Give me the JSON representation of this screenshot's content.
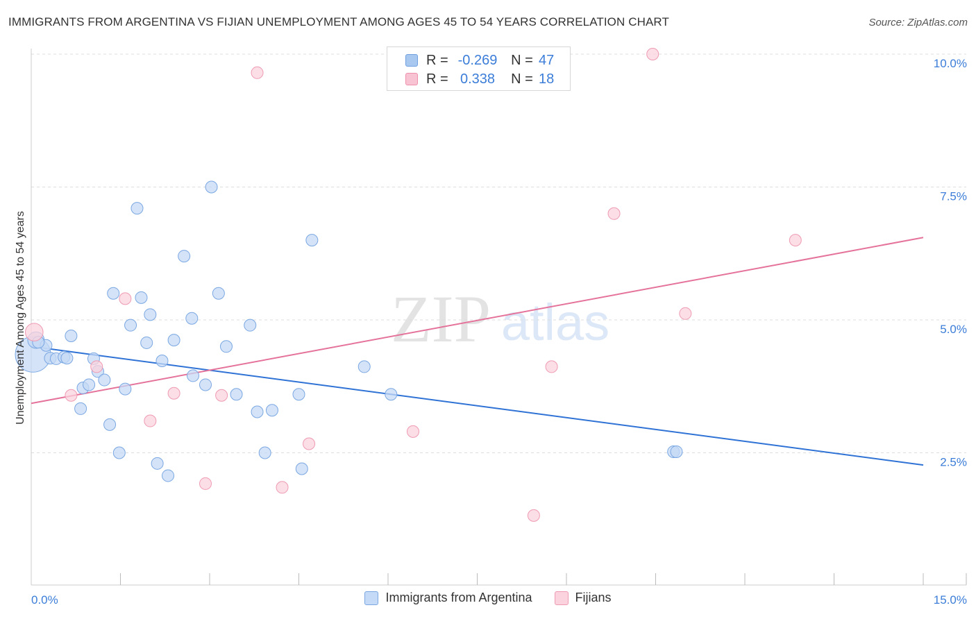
{
  "header": {
    "title": "IMMIGRANTS FROM ARGENTINA VS FIJIAN UNEMPLOYMENT AMONG AGES 45 TO 54 YEARS CORRELATION CHART",
    "source": "Source: ZipAtlas.com"
  },
  "watermark": {
    "zip": "ZIP",
    "atlas": "atlas"
  },
  "legend": {
    "rows": [
      {
        "r_label": "R =",
        "r_value": "-0.269",
        "n_label": "N =",
        "n_value": "47",
        "color": "#a9c8f0",
        "border": "#6f9fe0"
      },
      {
        "r_label": "R =",
        "r_value": "0.338",
        "n_label": "N =",
        "n_value": "18",
        "color": "#f8c4d3",
        "border": "#ee8fab"
      }
    ]
  },
  "bottom_legend": {
    "items": [
      {
        "label": "Immigrants from Argentina",
        "color": "#c5daf6",
        "border": "#7aa7e2"
      },
      {
        "label": "Fijians",
        "color": "#fbd3de",
        "border": "#ee9ab2"
      }
    ]
  },
  "chart_data": {
    "type": "scatter",
    "title": "IMMIGRANTS FROM ARGENTINA VS FIJIAN UNEMPLOYMENT AMONG AGES 45 TO 54 YEARS CORRELATION CHART",
    "xlabel": "",
    "ylabel": "Unemployment Among Ages 45 to 54 years",
    "xlim": [
      0,
      15
    ],
    "ylim": [
      0,
      10.4
    ],
    "x_tick_labels": [
      {
        "value": 0,
        "label": "0.0%"
      },
      {
        "value": 15,
        "label": "15.0%"
      }
    ],
    "x_minor_ticks": [
      1.5,
      3.0,
      4.5,
      6.0,
      7.5,
      9.0,
      10.5,
      12.0,
      13.5
    ],
    "y_ticks": [
      {
        "value": 2.5,
        "label": "2.5%"
      },
      {
        "value": 5.0,
        "label": "5.0%"
      },
      {
        "value": 7.5,
        "label": "7.5%"
      },
      {
        "value": 10.0,
        "label": "10.0%"
      }
    ],
    "grid": "horizontal dashed",
    "series": [
      {
        "name": "Immigrants from Argentina",
        "color": "#7aa7e2",
        "fill": "#c5daf6",
        "trend": {
          "x0": 0,
          "y0": 4.5,
          "x1": 15,
          "y1": 2.27,
          "color": "#2f72d6"
        },
        "points": [
          [
            0.03,
            4.35,
            3.0
          ],
          [
            0.08,
            4.62,
            1.4
          ],
          [
            0.25,
            4.52,
            1.0
          ],
          [
            0.32,
            4.28,
            1.0
          ],
          [
            0.42,
            4.27,
            1.0
          ],
          [
            0.55,
            4.3,
            1.0
          ],
          [
            0.67,
            4.7,
            1.0
          ],
          [
            0.83,
            3.33,
            1.0
          ],
          [
            0.87,
            3.72,
            1.0
          ],
          [
            0.97,
            3.78,
            1.0
          ],
          [
            1.05,
            4.27,
            1.0
          ],
          [
            1.12,
            4.03,
            1.0
          ],
          [
            1.23,
            3.87,
            1.0
          ],
          [
            1.32,
            3.03,
            1.0
          ],
          [
            1.38,
            5.5,
            1.0
          ],
          [
            1.48,
            2.5,
            1.0
          ],
          [
            1.58,
            3.7,
            1.0
          ],
          [
            1.67,
            4.9,
            1.0
          ],
          [
            1.78,
            7.1,
            1.0
          ],
          [
            1.85,
            5.42,
            1.0
          ],
          [
            1.94,
            4.57,
            1.0
          ],
          [
            2.0,
            5.1,
            1.0
          ],
          [
            2.12,
            2.3,
            1.0
          ],
          [
            2.2,
            4.23,
            1.0
          ],
          [
            2.3,
            2.07,
            1.0
          ],
          [
            2.4,
            4.62,
            1.0
          ],
          [
            2.57,
            6.2,
            1.0
          ],
          [
            2.7,
            5.03,
            1.0
          ],
          [
            2.72,
            3.95,
            1.0
          ],
          [
            2.93,
            3.78,
            1.0
          ],
          [
            3.03,
            7.5,
            1.0
          ],
          [
            3.15,
            5.5,
            1.0
          ],
          [
            3.28,
            4.5,
            1.0
          ],
          [
            3.45,
            3.6,
            1.0
          ],
          [
            3.68,
            4.9,
            1.0
          ],
          [
            3.8,
            3.27,
            1.0
          ],
          [
            3.93,
            2.5,
            1.0
          ],
          [
            4.05,
            3.3,
            1.0
          ],
          [
            4.5,
            3.6,
            1.0
          ],
          [
            4.55,
            2.2,
            1.0
          ],
          [
            4.72,
            6.5,
            1.0
          ],
          [
            5.6,
            4.12,
            1.0
          ],
          [
            6.05,
            3.6,
            1.0
          ],
          [
            10.8,
            2.52,
            1.0
          ],
          [
            10.85,
            2.52,
            1.0
          ],
          [
            0.12,
            4.58,
            1.0
          ],
          [
            0.6,
            4.28,
            1.0
          ]
        ]
      },
      {
        "name": "Fijians",
        "color": "#ee9ab2",
        "fill": "#fbd3de",
        "trend": {
          "x0": 0,
          "y0": 3.43,
          "x1": 15,
          "y1": 6.55,
          "color": "#e5729a"
        },
        "points": [
          [
            0.05,
            4.77,
            1.5
          ],
          [
            0.67,
            3.58,
            1.0
          ],
          [
            1.1,
            4.12,
            1.0
          ],
          [
            1.58,
            5.4,
            1.0
          ],
          [
            2.0,
            3.1,
            1.0
          ],
          [
            2.4,
            3.62,
            1.0
          ],
          [
            2.93,
            1.92,
            1.0
          ],
          [
            3.2,
            3.58,
            1.0
          ],
          [
            3.8,
            9.65,
            1.0
          ],
          [
            4.22,
            1.85,
            1.0
          ],
          [
            4.67,
            2.67,
            1.0
          ],
          [
            6.42,
            2.9,
            1.0
          ],
          [
            8.45,
            1.32,
            1.0
          ],
          [
            8.75,
            4.12,
            1.0
          ],
          [
            9.8,
            7.0,
            1.0
          ],
          [
            10.45,
            10.0,
            1.0
          ],
          [
            11.0,
            5.12,
            1.0
          ],
          [
            12.85,
            6.5,
            1.0
          ]
        ]
      }
    ]
  }
}
